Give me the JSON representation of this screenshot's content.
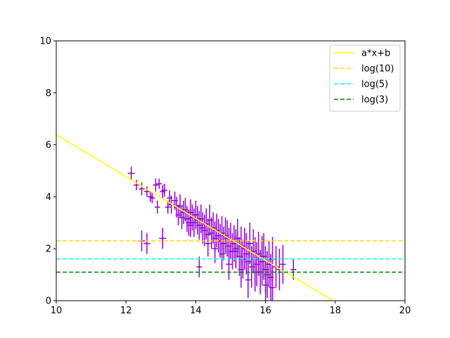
{
  "chart_data": {
    "type": "scatter",
    "title": "",
    "xlabel": "",
    "ylabel": "",
    "xlim": [
      10,
      20
    ],
    "ylim": [
      0,
      10
    ],
    "xticks": [
      "10",
      "12",
      "14",
      "16",
      "18",
      "20"
    ],
    "yticks": [
      "0",
      "2",
      "4",
      "6",
      "8",
      "10"
    ],
    "grid": false,
    "legend_position": "top-right",
    "series": [
      {
        "name": "a*x+b",
        "kind": "line",
        "color": "#ffff00",
        "style": "solid",
        "x": [
          10.0,
          17.93
        ],
        "y": [
          6.38,
          0.0
        ]
      },
      {
        "name": "log(10)",
        "kind": "hline",
        "color": "#ffd700",
        "style": "dashed",
        "y": 2.303
      },
      {
        "name": "log(5)",
        "kind": "hline",
        "color": "#00ffff",
        "style": "dashed",
        "y": 1.609
      },
      {
        "name": "log(3)",
        "kind": "hline",
        "color": "#008000",
        "style": "dashed",
        "y": 1.099
      },
      {
        "kind": "errorbar",
        "color": "#9400d3",
        "x": [
          12.15,
          12.3,
          12.45,
          12.6,
          12.7,
          12.75,
          12.85,
          12.9,
          12.95,
          13.05,
          13.1,
          13.2,
          13.25,
          13.3,
          13.4,
          13.45,
          13.5,
          13.55,
          13.6,
          13.65,
          13.7,
          13.75,
          13.8,
          13.85,
          13.9,
          13.95,
          14.0,
          14.05,
          14.1,
          14.15,
          14.2,
          14.25,
          14.3,
          14.35,
          14.4,
          14.45,
          14.5,
          14.55,
          14.6,
          14.65,
          14.7,
          14.75,
          14.8,
          14.85,
          14.9,
          14.95,
          15.0,
          15.05,
          15.1,
          15.15,
          15.2,
          15.25,
          15.3,
          15.35,
          15.4,
          15.45,
          15.5,
          15.55,
          15.6,
          15.65,
          15.7,
          15.75,
          15.8,
          15.85,
          15.9,
          15.95,
          16.0,
          16.05,
          16.1,
          16.15,
          16.2,
          16.3,
          16.4,
          16.5,
          16.8,
          12.45,
          12.6,
          13.05,
          13.85,
          14.1,
          14.35,
          14.55,
          14.75,
          14.95,
          15.15,
          15.3,
          15.5,
          15.7,
          15.9,
          16.0,
          16.2
        ],
        "y": [
          4.9,
          4.45,
          4.3,
          4.2,
          4.0,
          3.95,
          4.45,
          3.6,
          4.5,
          4.2,
          4.25,
          3.6,
          3.95,
          3.7,
          3.85,
          3.6,
          3.3,
          3.65,
          3.2,
          3.4,
          3.5,
          3.15,
          3.0,
          3.4,
          3.2,
          3.0,
          3.3,
          3.1,
          2.9,
          3.15,
          2.8,
          2.7,
          2.95,
          2.55,
          3.1,
          2.6,
          2.8,
          2.4,
          2.7,
          2.5,
          2.3,
          2.6,
          2.2,
          2.5,
          2.4,
          2.1,
          2.3,
          1.9,
          2.2,
          2.0,
          2.4,
          1.7,
          2.1,
          1.6,
          2.0,
          1.8,
          1.5,
          2.2,
          1.3,
          1.9,
          1.6,
          1.4,
          1.8,
          1.1,
          1.5,
          1.7,
          1.2,
          1.0,
          1.4,
          0.9,
          1.6,
          1.3,
          1.2,
          1.4,
          1.2,
          2.3,
          2.2,
          2.4,
          2.9,
          1.3,
          2.2,
          2.0,
          1.8,
          1.4,
          1.9,
          1.2,
          0.8,
          1.1,
          1.7,
          0.6,
          0.5
        ],
        "yerr": [
          0.25,
          0.2,
          0.25,
          0.2,
          0.2,
          0.2,
          0.25,
          0.25,
          0.2,
          0.25,
          0.25,
          0.25,
          0.3,
          0.35,
          0.35,
          0.4,
          0.4,
          0.45,
          0.45,
          0.45,
          0.45,
          0.5,
          0.5,
          0.5,
          0.5,
          0.55,
          0.55,
          0.55,
          0.55,
          0.55,
          0.6,
          0.6,
          0.6,
          0.6,
          0.6,
          0.6,
          0.6,
          0.65,
          0.65,
          0.65,
          0.65,
          0.65,
          0.65,
          0.7,
          0.7,
          0.7,
          0.7,
          0.7,
          0.7,
          0.75,
          0.75,
          0.75,
          0.75,
          0.75,
          0.8,
          0.8,
          0.8,
          0.8,
          0.8,
          0.85,
          0.85,
          0.85,
          0.85,
          0.85,
          0.9,
          0.9,
          0.9,
          0.9,
          0.9,
          0.9,
          0.85,
          0.8,
          0.8,
          0.75,
          0.4,
          0.4,
          0.4,
          0.4,
          0.45,
          0.4,
          0.5,
          0.55,
          0.6,
          0.6,
          0.65,
          0.7,
          0.7,
          0.75,
          0.8,
          0.85,
          0.85
        ],
        "xerr": [
          0.1,
          0.08,
          0.08,
          0.08,
          0.08,
          0.08,
          0.08,
          0.08,
          0.08,
          0.08,
          0.08,
          0.08,
          0.08,
          0.08,
          0.08,
          0.08,
          0.08,
          0.08,
          0.08,
          0.08,
          0.08,
          0.08,
          0.08,
          0.08,
          0.08,
          0.08,
          0.08,
          0.08,
          0.08,
          0.08,
          0.08,
          0.08,
          0.08,
          0.08,
          0.08,
          0.08,
          0.08,
          0.08,
          0.08,
          0.08,
          0.08,
          0.08,
          0.08,
          0.08,
          0.08,
          0.08,
          0.08,
          0.08,
          0.08,
          0.08,
          0.08,
          0.08,
          0.08,
          0.08,
          0.08,
          0.08,
          0.08,
          0.08,
          0.08,
          0.08,
          0.08,
          0.08,
          0.08,
          0.08,
          0.08,
          0.08,
          0.08,
          0.08,
          0.08,
          0.08,
          0.08,
          0.08,
          0.08,
          0.08,
          0.08,
          0.1,
          0.1,
          0.1,
          0.08,
          0.08,
          0.08,
          0.08,
          0.08,
          0.08,
          0.08,
          0.08,
          0.08,
          0.08,
          0.08,
          0.08,
          0.08
        ]
      }
    ]
  }
}
